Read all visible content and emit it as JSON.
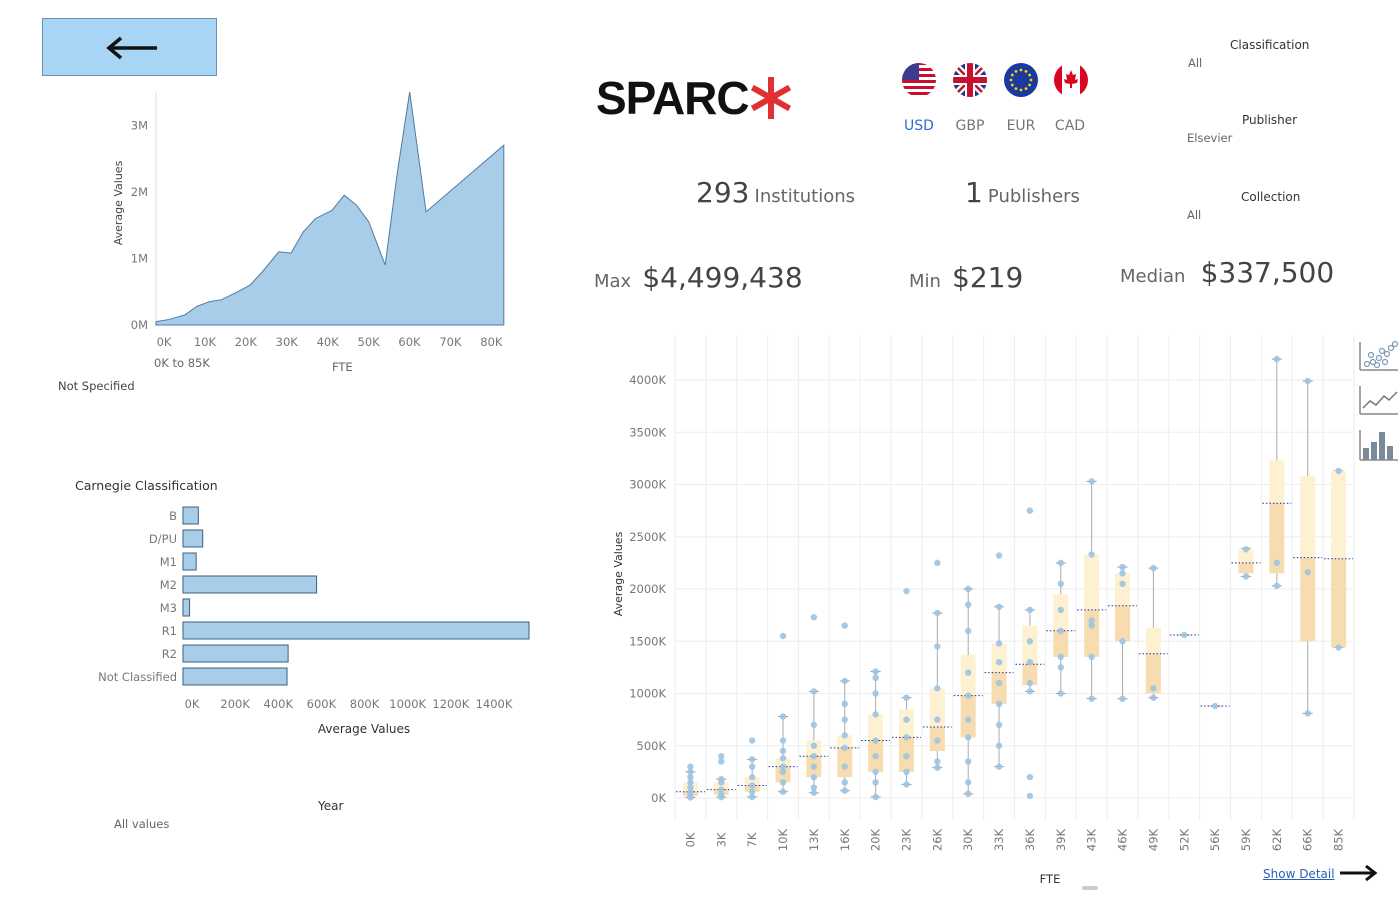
{
  "colors": {
    "accent_blue": "#a8cde8",
    "line_blue": "#4f79a6",
    "box_fill": "#fbe6c4",
    "dot": "#9cc4e3",
    "sparc_red": "#e03030"
  },
  "back_button": {
    "icon": "arrow-left-icon"
  },
  "logo": {
    "text": "SPARC",
    "mark": "asterisk-icon"
  },
  "currencies": [
    {
      "code": "USD",
      "flag": "us-flag-icon",
      "active": true
    },
    {
      "code": "GBP",
      "flag": "uk-flag-icon",
      "active": false
    },
    {
      "code": "EUR",
      "flag": "eu-flag-icon",
      "active": false
    },
    {
      "code": "CAD",
      "flag": "canada-flag-icon",
      "active": false
    }
  ],
  "filters": {
    "classification": {
      "title": "Classification",
      "value": "All"
    },
    "publisher": {
      "title": "Publisher",
      "value": "Elsevier"
    },
    "collection": {
      "title": "Collection",
      "value": "All"
    }
  },
  "kpis": {
    "institutions": {
      "value": "293",
      "label": "Institutions"
    },
    "publishers": {
      "value": "1",
      "label": "Publishers"
    },
    "max": {
      "label": "Max",
      "value": "$4,499,438"
    },
    "min": {
      "label": "Min",
      "value": "$219"
    },
    "median": {
      "label": "Median",
      "value": "$337,500"
    }
  },
  "fte_filter": {
    "range": "0K to 85K",
    "label": "FTE"
  },
  "not_specified": "Not Specified",
  "year_filter": {
    "title": "Year",
    "value": "All values"
  },
  "show_detail": "Show Detail",
  "view_icons": [
    "scatter-view-icon",
    "line-view-icon",
    "bar-view-icon"
  ],
  "chart_data": [
    {
      "type": "area",
      "xlabel": "FTE",
      "ylabel": "Average Values",
      "x_ticks": [
        "0K",
        "10K",
        "20K",
        "30K",
        "40K",
        "50K",
        "60K",
        "70K",
        "80K"
      ],
      "y_ticks": [
        "0M",
        "1M",
        "2M",
        "3M"
      ],
      "xlim": [
        0,
        87000
      ],
      "ylim": [
        0,
        3500000
      ],
      "x": [
        0,
        3000,
        7000,
        10000,
        13000,
        16000,
        20000,
        23000,
        26000,
        30000,
        33000,
        36000,
        39000,
        43000,
        46000,
        49000,
        52000,
        56000,
        59000,
        62000,
        66000,
        85000
      ],
      "y": [
        50000,
        80000,
        150000,
        280000,
        350000,
        380000,
        500000,
        600000,
        800000,
        1100000,
        1080000,
        1400000,
        1600000,
        1720000,
        1950000,
        1800000,
        1550000,
        900000,
        2300000,
        3500000,
        1700000,
        2700000
      ]
    },
    {
      "type": "bar",
      "title": "Carnegie Classification",
      "xlabel": "Average Values",
      "categories": [
        "B",
        "D/PU",
        "M1",
        "M2",
        "M3",
        "R1",
        "R2",
        "Not Classified"
      ],
      "values": [
        70000,
        90000,
        60000,
        610000,
        30000,
        1580000,
        480000,
        475000
      ],
      "x_ticks": [
        "0K",
        "200K",
        "400K",
        "600K",
        "800K",
        "1000K",
        "1200K",
        "1400K"
      ],
      "xlim": [
        0,
        1580000
      ]
    },
    {
      "type": "scatter",
      "xlabel": "FTE",
      "ylabel": "Average Values",
      "y_ticks": [
        "0K",
        "500K",
        "1000K",
        "1500K",
        "2000K",
        "2500K",
        "3000K",
        "3500K",
        "4000K"
      ],
      "ylim": [
        0,
        4200000
      ],
      "categories": [
        "0K",
        "3K",
        "7K",
        "10K",
        "13K",
        "16K",
        "20K",
        "23K",
        "26K",
        "30K",
        "33K",
        "36K",
        "39K",
        "43K",
        "46K",
        "49K",
        "52K",
        "56K",
        "59K",
        "62K",
        "66K",
        "85K"
      ],
      "boxes": [
        {
          "min": 5000,
          "q1": 20000,
          "med": 60000,
          "q3": 150000,
          "max": 250000,
          "points": [
            5000,
            20000,
            60000,
            100000,
            150000,
            200000,
            250000,
            300000
          ]
        },
        {
          "min": 8000,
          "q1": 30000,
          "med": 80000,
          "q3": 150000,
          "max": 180000,
          "points": [
            8000,
            30000,
            80000,
            150000,
            180000,
            350000,
            400000
          ]
        },
        {
          "min": 10000,
          "q1": 60000,
          "med": 120000,
          "q3": 200000,
          "max": 370000,
          "points": [
            10000,
            60000,
            120000,
            200000,
            300000,
            370000,
            550000
          ]
        },
        {
          "min": 60000,
          "q1": 150000,
          "med": 300000,
          "q3": 380000,
          "max": 780000,
          "points": [
            60000,
            150000,
            250000,
            300000,
            380000,
            450000,
            550000,
            780000,
            1550000
          ]
        },
        {
          "min": 50000,
          "q1": 200000,
          "med": 400000,
          "q3": 550000,
          "max": 1020000,
          "points": [
            50000,
            100000,
            200000,
            300000,
            400000,
            500000,
            700000,
            1020000,
            1730000
          ]
        },
        {
          "min": 70000,
          "q1": 200000,
          "med": 480000,
          "q3": 600000,
          "max": 1120000,
          "points": [
            70000,
            150000,
            300000,
            480000,
            600000,
            750000,
            900000,
            1120000,
            1650000
          ]
        },
        {
          "min": 10000,
          "q1": 250000,
          "med": 550000,
          "q3": 800000,
          "max": 1210000,
          "points": [
            10000,
            150000,
            250000,
            400000,
            550000,
            800000,
            1000000,
            1150000,
            1210000
          ]
        },
        {
          "min": 130000,
          "q1": 250000,
          "med": 580000,
          "q3": 850000,
          "max": 960000,
          "points": [
            130000,
            250000,
            400000,
            580000,
            750000,
            960000,
            1980000
          ]
        },
        {
          "min": 290000,
          "q1": 450000,
          "med": 680000,
          "q3": 1050000,
          "max": 1770000,
          "points": [
            290000,
            350000,
            550000,
            750000,
            1050000,
            1450000,
            1770000,
            2250000
          ]
        },
        {
          "min": 40000,
          "q1": 580000,
          "med": 980000,
          "q3": 1370000,
          "max": 2000000,
          "points": [
            40000,
            150000,
            350000,
            580000,
            750000,
            980000,
            1200000,
            1600000,
            1850000,
            2000000
          ]
        },
        {
          "min": 300000,
          "q1": 900000,
          "med": 1200000,
          "q3": 1480000,
          "max": 1830000,
          "points": [
            300000,
            500000,
            700000,
            900000,
            1100000,
            1300000,
            1480000,
            1830000,
            2320000
          ]
        },
        {
          "min": 1020000,
          "q1": 1080000,
          "med": 1280000,
          "q3": 1650000,
          "max": 1800000,
          "points": [
            20000,
            200000,
            1020000,
            1100000,
            1300000,
            1500000,
            1800000,
            2750000
          ]
        },
        {
          "min": 1000000,
          "q1": 1350000,
          "med": 1600000,
          "q3": 1950000,
          "max": 2250000,
          "points": [
            1000000,
            1250000,
            1350000,
            1600000,
            1800000,
            2050000,
            2250000
          ]
        },
        {
          "min": 950000,
          "q1": 1350000,
          "med": 1800000,
          "q3": 2330000,
          "max": 3030000,
          "points": [
            950000,
            1350000,
            1650000,
            1700000,
            2330000,
            3030000
          ]
        },
        {
          "min": 950000,
          "q1": 1500000,
          "med": 1840000,
          "q3": 2150000,
          "max": 2210000,
          "points": [
            950000,
            1500000,
            2050000,
            2150000,
            2210000
          ]
        },
        {
          "min": 960000,
          "q1": 1000000,
          "med": 1380000,
          "q3": 1630000,
          "max": 2200000,
          "points": [
            960000,
            1050000,
            2200000
          ]
        },
        {
          "min": 1560000,
          "q1": 1560000,
          "med": 1560000,
          "q3": 1560000,
          "max": 1560000,
          "points": [
            1560000
          ]
        },
        {
          "min": 880000,
          "q1": 880000,
          "med": 880000,
          "q3": 880000,
          "max": 880000,
          "points": [
            880000
          ]
        },
        {
          "min": 2120000,
          "q1": 2150000,
          "med": 2250000,
          "q3": 2380000,
          "max": 2390000,
          "points": [
            2120000,
            2380000
          ]
        },
        {
          "min": 2030000,
          "q1": 2150000,
          "med": 2820000,
          "q3": 3230000,
          "max": 4200000,
          "points": [
            2030000,
            2250000,
            4200000
          ]
        },
        {
          "min": 810000,
          "q1": 1500000,
          "med": 2300000,
          "q3": 3080000,
          "max": 3990000,
          "points": [
            810000,
            2160000,
            3990000
          ]
        },
        {
          "min": 1440000,
          "q1": 1440000,
          "med": 2290000,
          "q3": 3130000,
          "max": 3130000,
          "points": [
            1440000,
            3130000
          ]
        }
      ]
    }
  ]
}
